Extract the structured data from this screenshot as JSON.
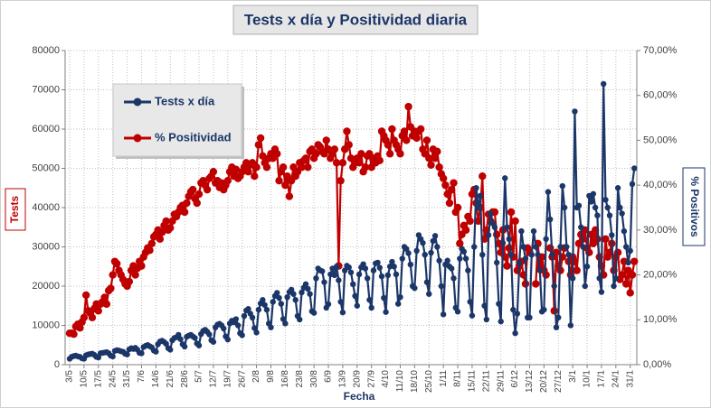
{
  "chart_data": {
    "type": "line",
    "title": "Tests x día y Positividad  diaria",
    "xlabel": "Fecha",
    "ylabel": "Tests",
    "y2label": "% Positivos",
    "ylim": [
      0,
      80000
    ],
    "yticks": [
      0,
      10000,
      20000,
      30000,
      40000,
      50000,
      60000,
      70000,
      80000
    ],
    "y2lim": [
      0,
      70
    ],
    "y2ticks": [
      {
        "value": 0,
        "label": "0,00%"
      },
      {
        "value": 10,
        "label": "10,00%"
      },
      {
        "value": 20,
        "label": "20,00%"
      },
      {
        "value": 30,
        "label": "30,00%"
      },
      {
        "value": 40,
        "label": "40,00%"
      },
      {
        "value": 50,
        "label": "50,00%"
      },
      {
        "value": 60,
        "label": "60,00%"
      },
      {
        "value": 70,
        "label": "70,00%"
      }
    ],
    "grid": true,
    "legend": "upper left",
    "categories": [
      "3/5",
      null,
      null,
      null,
      null,
      null,
      null,
      "10/5",
      null,
      null,
      null,
      null,
      null,
      null,
      "17/5",
      null,
      null,
      null,
      null,
      null,
      null,
      "24/5",
      null,
      null,
      null,
      null,
      null,
      null,
      "31/5",
      null,
      null,
      null,
      null,
      null,
      null,
      "7/6",
      null,
      null,
      null,
      null,
      null,
      null,
      "14/6",
      null,
      null,
      null,
      null,
      null,
      null,
      "21/6",
      null,
      null,
      null,
      null,
      null,
      null,
      "28/6",
      null,
      null,
      null,
      null,
      null,
      null,
      "5/7",
      null,
      null,
      null,
      null,
      null,
      null,
      "12/7",
      null,
      null,
      null,
      null,
      null,
      null,
      "19/7",
      null,
      null,
      null,
      null,
      null,
      null,
      "26/7",
      null,
      null,
      null,
      null,
      null,
      null,
      "2/8",
      null,
      null,
      null,
      null,
      null,
      null,
      "9/8",
      null,
      null,
      null,
      null,
      null,
      null,
      "16/8",
      null,
      null,
      null,
      null,
      null,
      null,
      "23/8",
      null,
      null,
      null,
      null,
      null,
      null,
      "30/8",
      null,
      null,
      null,
      null,
      null,
      null,
      "6/9",
      null,
      null,
      null,
      null,
      null,
      null,
      "13/9",
      null,
      null,
      null,
      null,
      null,
      null,
      "20/9",
      null,
      null,
      null,
      null,
      null,
      null,
      "27/9",
      null,
      null,
      null,
      null,
      null,
      null,
      "4/10",
      null,
      null,
      null,
      null,
      null,
      null,
      "11/10",
      null,
      null,
      null,
      null,
      null,
      null,
      "18/10",
      null,
      null,
      null,
      null,
      null,
      null,
      "25/10",
      null,
      null,
      null,
      null,
      null,
      null,
      "1/11",
      null,
      null,
      null,
      null,
      null,
      null,
      "8/11",
      null,
      null,
      null,
      null,
      null,
      null,
      "15/11",
      null,
      null,
      null,
      null,
      null,
      null,
      "22/11",
      null,
      null,
      null,
      null,
      null,
      null,
      "29/11",
      null,
      null,
      null,
      null,
      null,
      null,
      "6/12",
      null,
      null,
      null,
      null,
      null,
      null,
      "13/12",
      null,
      null,
      null,
      null,
      null,
      null,
      "20/12",
      null,
      null,
      null,
      null,
      null,
      null,
      "27/12",
      null,
      null,
      null,
      null,
      null,
      null,
      "3/1",
      null,
      null,
      null,
      null,
      null,
      null,
      "10/1",
      null,
      null,
      null,
      null,
      null,
      null,
      "17/1",
      null,
      null,
      null,
      null,
      null,
      null,
      "24/1",
      null,
      null,
      null,
      null,
      null,
      null,
      "31/1",
      null,
      null
    ],
    "series": [
      {
        "name": "% Positividad",
        "color": "#c00000",
        "axis": "y2",
        "values": [
          7,
          7,
          6.8,
          8.5,
          9,
          8.2,
          9.5,
          10.5,
          15.5,
          12,
          11.5,
          10.5,
          12.5,
          13.5,
          12,
          13.5,
          14,
          15,
          13.5,
          16.5,
          17,
          20,
          23,
          22.5,
          21,
          20,
          19,
          18,
          17.5,
          18.5,
          21,
          22,
          20,
          21.5,
          23,
          22,
          24,
          25,
          26,
          25.5,
          27,
          28.5,
          29,
          30,
          28,
          29.5,
          31,
          32,
          30,
          30.5,
          32,
          33.5,
          33,
          34,
          35,
          35.5,
          34,
          36,
          37.5,
          38.5,
          39,
          37,
          36,
          38,
          40.5,
          41,
          40,
          39,
          41.5,
          42,
          43,
          40.5,
          41,
          39.5,
          40.5,
          39,
          40,
          41,
          43,
          44,
          42,
          43.5,
          41.5,
          42,
          43,
          44,
          45,
          43,
          44.5,
          45,
          42,
          44,
          49,
          50.5,
          46.5,
          45,
          44,
          46,
          47,
          46,
          48,
          47,
          41,
          43,
          44,
          40,
          42,
          37.5,
          41,
          44,
          42,
          43,
          45,
          44,
          45.5,
          46,
          44,
          47.5,
          48,
          46,
          47,
          49,
          48.5,
          47.5,
          47,
          50,
          48,
          46,
          47,
          48,
          45,
          22,
          41,
          45,
          48,
          52,
          49,
          46,
          44,
          45,
          46,
          45,
          47,
          43,
          44,
          46.5,
          47,
          44,
          46,
          45,
          46.5,
          45.5,
          52,
          51,
          50,
          49,
          47,
          52.5,
          50,
          49,
          48,
          47,
          51,
          52,
          50,
          57.5,
          53,
          51,
          52,
          50.5,
          52,
          52.5,
          48,
          47,
          50,
          46,
          44.5,
          48,
          46,
          47.5,
          44,
          42.5,
          41.5,
          40,
          38,
          36,
          39,
          40.5,
          34,
          35,
          27,
          29,
          31,
          30,
          33,
          32,
          38,
          39,
          36,
          32,
          35,
          42,
          28,
          30,
          33.5,
          32,
          34,
          34,
          29,
          27,
          25,
          30,
          24,
          22,
          26,
          34,
          24,
          32,
          21,
          22,
          23,
          20,
          18,
          26,
          25,
          null,
          null,
          18,
          27,
          22,
          24,
          21,
          20,
          null,
          26,
          24,
          12,
          25,
          22,
          21,
          24,
          26,
          null,
          23,
          20,
          24,
          23,
          21,
          27,
          29,
          28,
          30,
          26,
          25,
          29,
          27,
          30,
          28,
          24,
          22,
          20,
          28,
          24,
          25,
          27,
          21,
          24,
          25,
          19,
          20,
          23,
          18,
          21,
          16,
          20,
          23
        ]
      },
      {
        "name": "Tests x día",
        "color": "#1b3668",
        "values": [
          1500,
          2000,
          2200,
          2300,
          2100,
          2000,
          1600,
          1500,
          2400,
          2600,
          2700,
          2800,
          2500,
          2000,
          1800,
          2900,
          3000,
          3100,
          3200,
          2900,
          2300,
          2100,
          3500,
          3700,
          3600,
          3400,
          3300,
          2800,
          2600,
          3900,
          4200,
          4000,
          4300,
          3800,
          3000,
          2900,
          4500,
          4800,
          5000,
          4700,
          4400,
          3600,
          3300,
          5200,
          5900,
          6100,
          5800,
          5300,
          4200,
          3800,
          6200,
          6800,
          7000,
          7600,
          6500,
          5200,
          4600,
          7100,
          7400,
          7600,
          7200,
          6800,
          5400,
          4900,
          7800,
          8600,
          8900,
          8400,
          7700,
          6200,
          5800,
          9500,
          10200,
          10400,
          10000,
          9200,
          7200,
          6400,
          10500,
          11200,
          10800,
          11600,
          10000,
          8000,
          7500,
          12400,
          13800,
          14200,
          13000,
          12000,
          9300,
          8200,
          14000,
          15600,
          16500,
          15200,
          14000,
          10500,
          9500,
          16000,
          17500,
          18300,
          17000,
          15500,
          11600,
          10500,
          17200,
          18500,
          19100,
          18000,
          16500,
          12400,
          11500,
          18400,
          19600,
          20500,
          19300,
          18000,
          13600,
          13200,
          22000,
          24500,
          24000,
          23800,
          21000,
          14500,
          15400,
          23000,
          24500,
          22800,
          25000,
          21500,
          16000,
          13300,
          24000,
          25200,
          24800,
          23500,
          20500,
          17500,
          15000,
          23000,
          24800,
          25600,
          24500,
          22000,
          16500,
          14500,
          24000,
          25800,
          26000,
          24700,
          22500,
          17000,
          13400,
          22800,
          25000,
          26200,
          25000,
          23000,
          15500,
          17200,
          27000,
          30000,
          29500,
          28400,
          25500,
          20000,
          19500,
          29000,
          33000,
          32000,
          31000,
          28000,
          21000,
          18000,
          28500,
          31500,
          32800,
          30000,
          26500,
          20000,
          12800,
          25500,
          26500,
          25000,
          24500,
          22000,
          14500,
          13500,
          27000,
          29500,
          28800,
          27000,
          24000,
          16000,
          12500,
          30000,
          45000,
          40000,
          43000,
          28000,
          15000,
          11500,
          33000,
          38500,
          36000,
          35000,
          26000,
          15500,
          11000,
          31000,
          47500,
          35000,
          32000,
          28000,
          14000,
          8000,
          13000,
          26000,
          34000,
          30000,
          27000,
          12000,
          12000,
          28000,
          34000,
          30000,
          28000,
          24000,
          13500,
          14000,
          32000,
          44000,
          37000,
          28000,
          20000,
          9500,
          12000,
          30000,
          45500,
          40000,
          30000,
          28000,
          10000,
          22000,
          64500,
          40000,
          40500,
          35000,
          30000,
          20000,
          25000,
          43000,
          41500,
          43500,
          40000,
          38000,
          22000,
          18500,
          71500,
          42000,
          40000,
          38000,
          33000,
          20000,
          22000,
          45000,
          40000,
          38500,
          34000,
          30000,
          26000,
          29000,
          46000,
          50000
        ]
      }
    ]
  }
}
